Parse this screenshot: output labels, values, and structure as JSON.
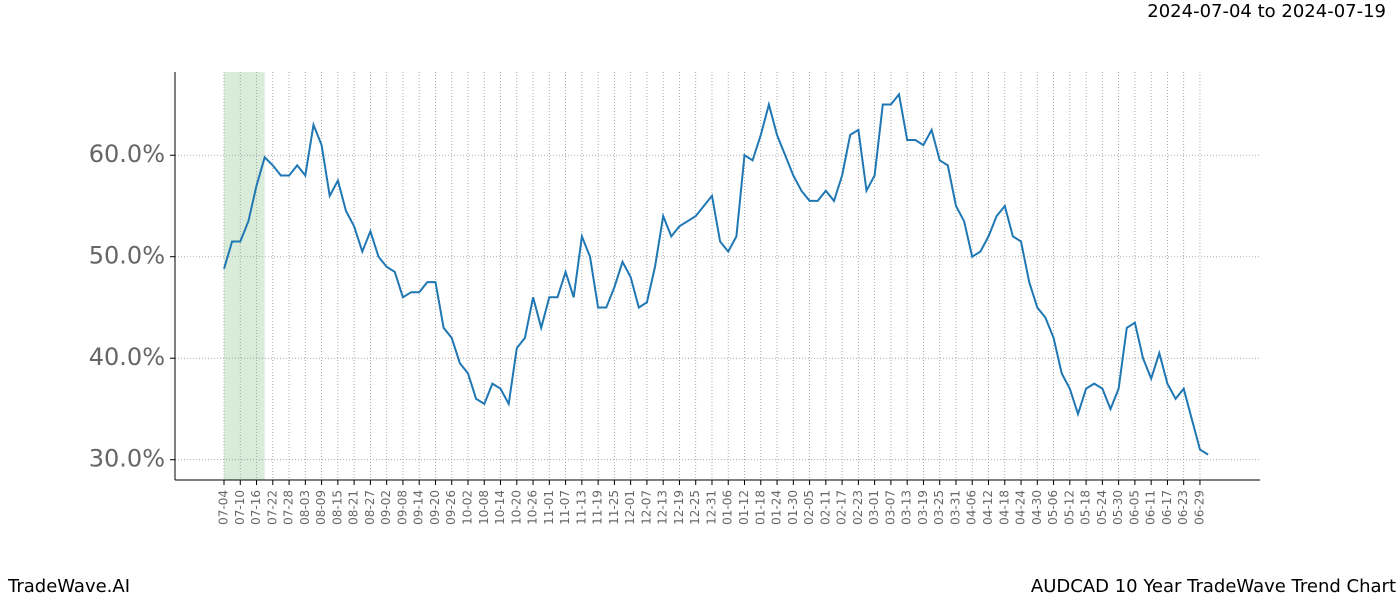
{
  "header": {
    "date_range": "2024-07-04 to 2024-07-19"
  },
  "footer": {
    "brand": "TradeWave.AI",
    "chart_name": "AUDCAD 10 Year TradeWave Trend Chart"
  },
  "chart_data": {
    "type": "line",
    "categories": [
      "07-04",
      null,
      "07-10",
      null,
      "07-16",
      null,
      "07-22",
      null,
      "07-28",
      null,
      "08-03",
      null,
      "08-09",
      null,
      "08-15",
      null,
      "08-21",
      null,
      "08-27",
      null,
      "09-02",
      null,
      "09-08",
      null,
      "09-14",
      null,
      "09-20",
      null,
      "09-26",
      null,
      "10-02",
      null,
      "10-08",
      null,
      "10-14",
      null,
      "10-20",
      null,
      "10-26",
      null,
      "11-01",
      null,
      "11-07",
      null,
      "11-13",
      null,
      "11-19",
      null,
      "11-25",
      null,
      "12-01",
      null,
      "12-07",
      null,
      "12-13",
      null,
      "12-19",
      null,
      "12-25",
      null,
      "12-31",
      null,
      "01-06",
      null,
      "01-12",
      null,
      "01-18",
      null,
      "01-24",
      null,
      "01-30",
      null,
      "02-05",
      null,
      "02-11",
      null,
      "02-17",
      null,
      "02-23",
      null,
      "03-01",
      null,
      "03-07",
      null,
      "03-13",
      null,
      "03-19",
      null,
      "03-25",
      null,
      "03-31",
      null,
      "04-06",
      null,
      "04-12",
      null,
      "04-18",
      null,
      "04-24",
      null,
      "04-30",
      null,
      "05-06",
      null,
      "05-12",
      null,
      "05-18",
      null,
      "05-24",
      null,
      "05-30",
      null,
      "06-05",
      null,
      "06-11",
      null,
      "06-17",
      null,
      "06-23",
      null,
      "06-29",
      null
    ],
    "series": [
      {
        "name": "AUDCAD",
        "color": "#1f77b4",
        "values": [
          48.8,
          51.5,
          51.5,
          53.5,
          57,
          59.8,
          59,
          58,
          58,
          59,
          58,
          63,
          61,
          56,
          57.5,
          54.5,
          53,
          50.5,
          52.5,
          50,
          49,
          48.5,
          46,
          46.5,
          46.5,
          47.5,
          47.5,
          43,
          42,
          39.5,
          38.5,
          36,
          35.5,
          37.5,
          37,
          35.5,
          41,
          42,
          46,
          43,
          46,
          46,
          48.5,
          46,
          52,
          50,
          45,
          45,
          47,
          49.5,
          48,
          45,
          45.5,
          49,
          54,
          52,
          53,
          53.5,
          54,
          55,
          56,
          51.5,
          50.5,
          52,
          60,
          59.5,
          62,
          65,
          62,
          60,
          58,
          56.5,
          55.5,
          55.5,
          56.5,
          55.5,
          58,
          62,
          62.5,
          56.5,
          58,
          65,
          65,
          66,
          61.5,
          61.5,
          61,
          62.5,
          59.5,
          59,
          55,
          53.5,
          50,
          50.5,
          52,
          54,
          55,
          52,
          51.5,
          47.5,
          45,
          44,
          42,
          38.5,
          37,
          34.5,
          37,
          37.5,
          37,
          35,
          37,
          43,
          43.5,
          40,
          38,
          40.5,
          37.5,
          36,
          37,
          34,
          31,
          30.5
        ]
      }
    ],
    "highlight": {
      "from": 0,
      "to": 5,
      "color": "#d9ecd9"
    },
    "ylim": [
      28,
      68.2
    ],
    "yticks": [
      {
        "value": 30,
        "label": "30.0%"
      },
      {
        "value": 40,
        "label": "40.0%"
      },
      {
        "value": 50,
        "label": "50.0%"
      },
      {
        "value": 60,
        "label": "60.0%"
      }
    ],
    "grid": true
  }
}
